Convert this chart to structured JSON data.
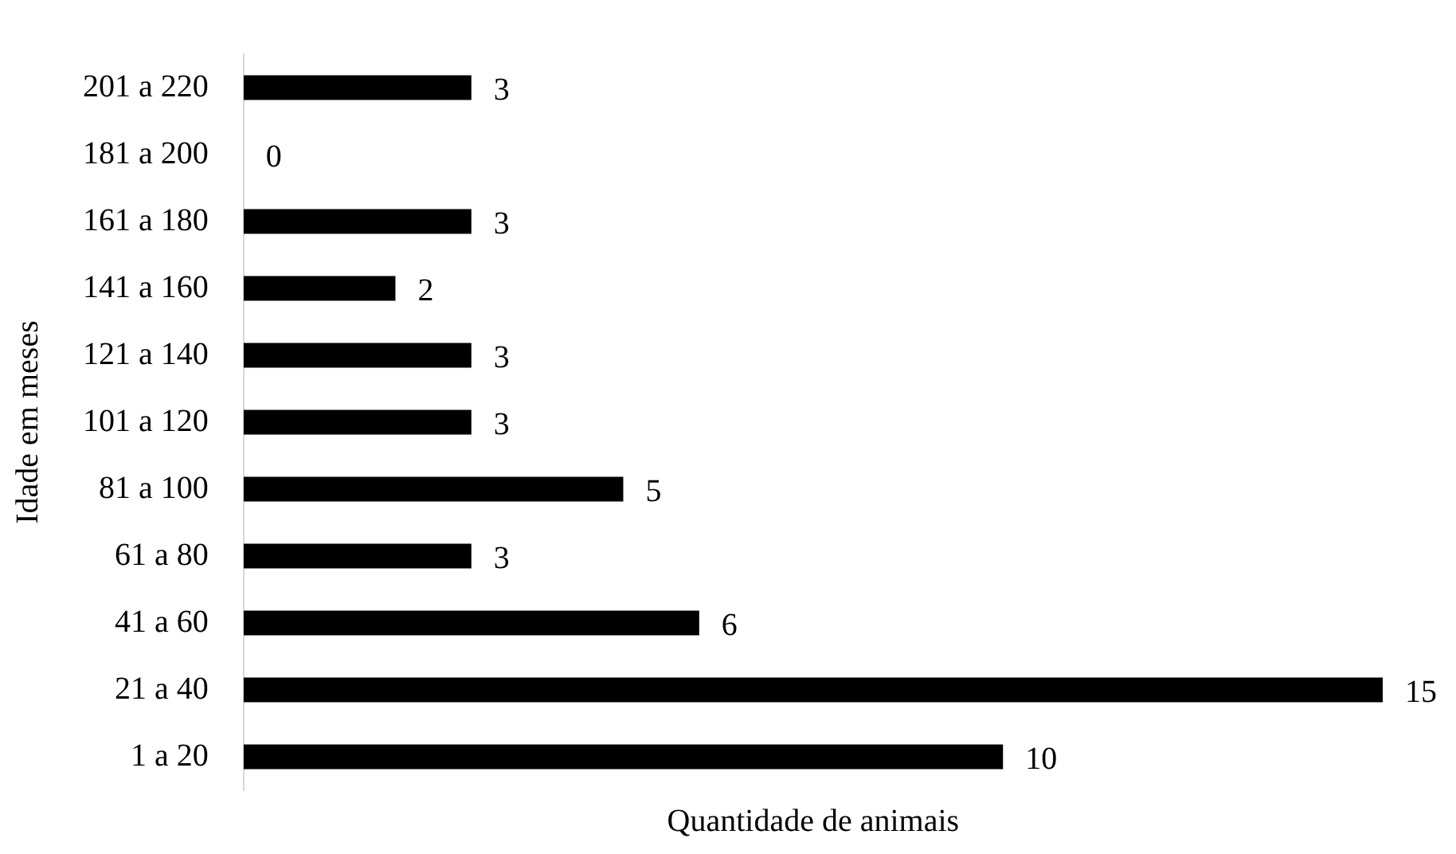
{
  "chart_data": {
    "type": "bar",
    "orientation": "horizontal",
    "xlabel": "Quantidade de animais",
    "ylabel": "Idade em meses",
    "categories": [
      "201 a 220",
      "181 a 200",
      "161 a 180",
      "141 a 160",
      "121 a 140",
      "101 a 120",
      "81 a 100",
      "61 a 80",
      "41 a 60",
      "21 a 40",
      "1 a 20"
    ],
    "values": [
      3,
      0,
      3,
      2,
      3,
      3,
      5,
      3,
      6,
      15,
      10
    ],
    "color": "#000000",
    "data_labels": true,
    "grid": false,
    "legend": false
  }
}
